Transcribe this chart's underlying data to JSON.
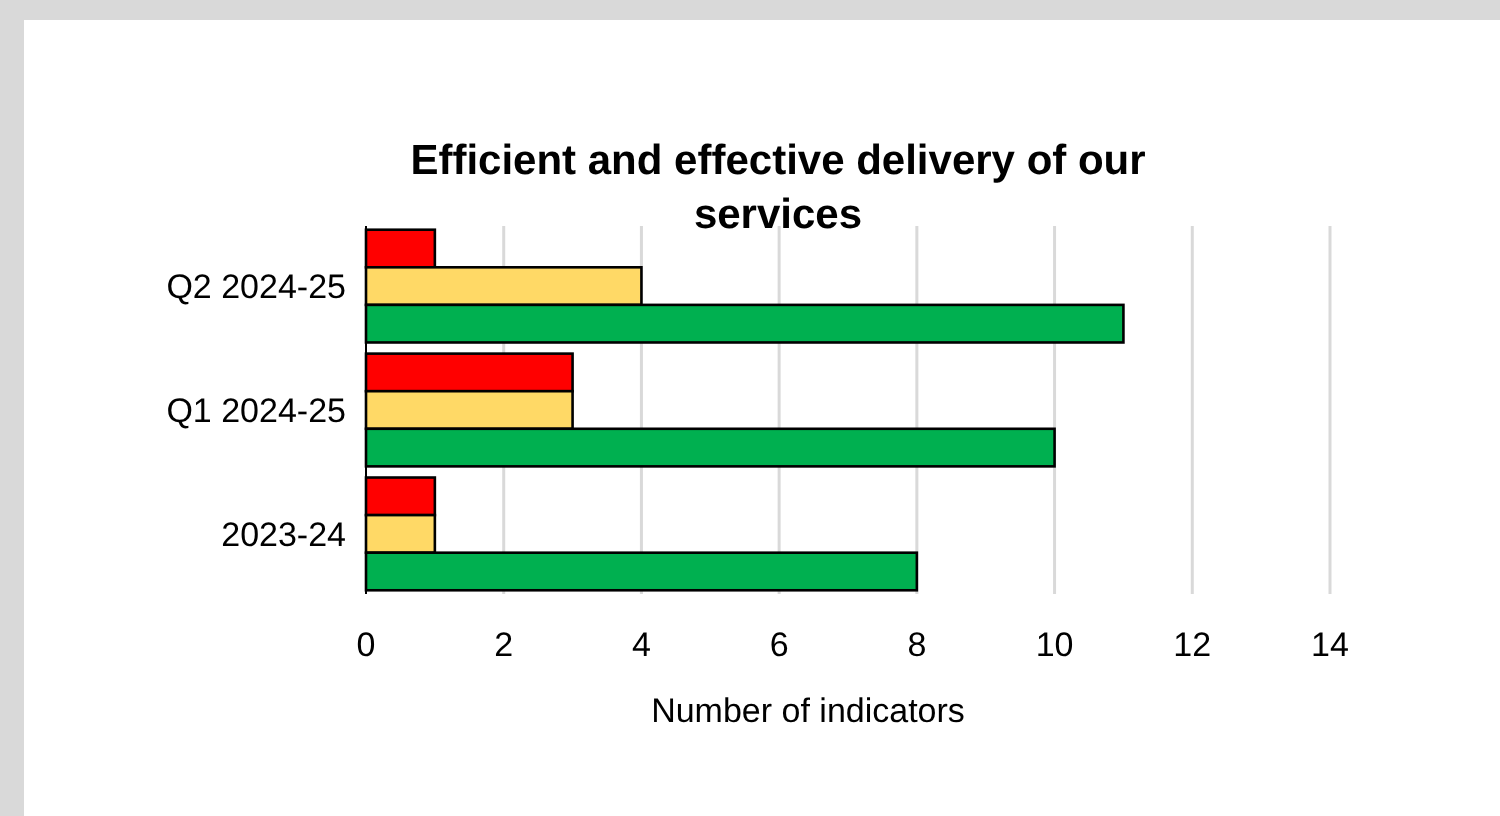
{
  "chart_data": {
    "type": "bar",
    "orientation": "horizontal",
    "title": "Efficient and effective delivery of our services",
    "xlabel": "Number of indicators",
    "categories": [
      "Q2 2024-25",
      "Q1 2024-25",
      "2023-24"
    ],
    "series": [
      {
        "color": "#ff0000",
        "values": [
          1,
          3,
          1
        ]
      },
      {
        "color": "#ffd966",
        "values": [
          4,
          3,
          1
        ]
      },
      {
        "color": "#00b050",
        "values": [
          11,
          10,
          8
        ]
      }
    ],
    "xlim": [
      0,
      14
    ],
    "xticks": [
      0,
      2,
      4,
      6,
      8,
      10,
      12,
      14
    ],
    "grid": "x"
  }
}
